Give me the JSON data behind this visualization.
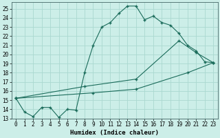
{
  "xlabel": "Humidex (Indice chaleur)",
  "line_color": "#1a6b5a",
  "bg_color": "#cceee8",
  "grid_color": "#aad8d0",
  "xlim": [
    -0.5,
    23.5
  ],
  "ylim": [
    13,
    25.7
  ],
  "yticks": [
    13,
    14,
    15,
    16,
    17,
    18,
    19,
    20,
    21,
    22,
    23,
    24,
    25
  ],
  "xticks": [
    0,
    1,
    2,
    3,
    4,
    5,
    6,
    7,
    8,
    9,
    10,
    11,
    12,
    13,
    14,
    15,
    16,
    17,
    18,
    19,
    20,
    21,
    22,
    23
  ],
  "line1_x": [
    0,
    1,
    2,
    3,
    4,
    5,
    6,
    7,
    8,
    9,
    10,
    11,
    12,
    13,
    14,
    15,
    16,
    17,
    18,
    19,
    20,
    21,
    22,
    23
  ],
  "line1_y": [
    15.2,
    13.7,
    13.2,
    14.2,
    14.2,
    13.1,
    14.0,
    13.9,
    18.0,
    21.0,
    23.0,
    23.5,
    24.5,
    25.3,
    25.3,
    23.8,
    24.2,
    23.5,
    23.2,
    22.3,
    21.0,
    20.4,
    19.2,
    19.1
  ],
  "line2_x": [
    0,
    9,
    14,
    20,
    23
  ],
  "line2_y": [
    15.2,
    15.8,
    16.2,
    18.0,
    19.1
  ],
  "line3_x": [
    0,
    8,
    14,
    19,
    21,
    23
  ],
  "line3_y": [
    15.2,
    16.5,
    17.3,
    21.5,
    20.2,
    19.1
  ]
}
